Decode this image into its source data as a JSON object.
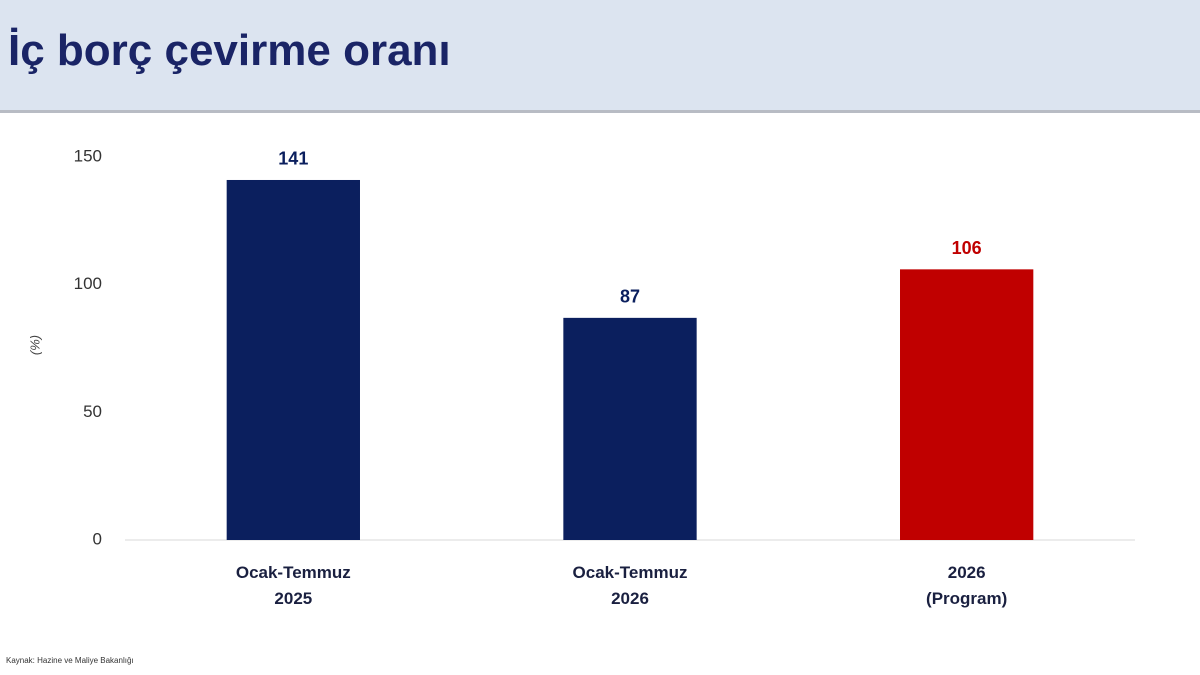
{
  "chart_data": {
    "type": "bar",
    "title": "İç borç çevirme oranı",
    "y_label": "(%)",
    "categories": [
      "Ocak-Temmuz 2025",
      "Ocak-Temmuz 2026",
      "2026 (Program)"
    ],
    "values": [
      141,
      87,
      106
    ],
    "colors": [
      "#0b1f5e",
      "#0b1f5e",
      "#c00000"
    ],
    "ylim": [
      0,
      150
    ],
    "yticks": [
      0,
      50,
      100,
      150
    ],
    "grid": false,
    "source": "Kaynak: Hazine ve Maliye Bakanlığı"
  }
}
